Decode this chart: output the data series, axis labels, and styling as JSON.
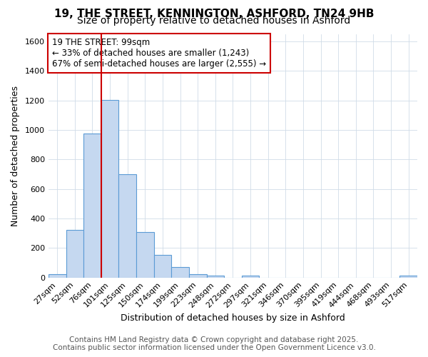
{
  "title": "19, THE STREET, KENNINGTON, ASHFORD, TN24 9HB",
  "subtitle": "Size of property relative to detached houses in Ashford",
  "xlabel": "Distribution of detached houses by size in Ashford",
  "ylabel": "Number of detached properties",
  "bar_labels": [
    "27sqm",
    "52sqm",
    "76sqm",
    "101sqm",
    "125sqm",
    "150sqm",
    "174sqm",
    "199sqm",
    "223sqm",
    "248sqm",
    "272sqm",
    "297sqm",
    "321sqm",
    "346sqm",
    "370sqm",
    "395sqm",
    "419sqm",
    "444sqm",
    "468sqm",
    "493sqm",
    "517sqm"
  ],
  "bar_values": [
    25,
    325,
    975,
    1205,
    700,
    310,
    155,
    70,
    25,
    15,
    0,
    15,
    0,
    0,
    0,
    0,
    0,
    0,
    0,
    0,
    15
  ],
  "bar_color": "#c5d8f0",
  "bar_edge_color": "#5b9bd5",
  "annotation_line1": "19 THE STREET: 99sqm",
  "annotation_line2": "← 33% of detached houses are smaller (1,243)",
  "annotation_line3": "67% of semi-detached houses are larger (2,555) →",
  "vline_color": "#cc0000",
  "ylim": [
    0,
    1650
  ],
  "yticks": [
    0,
    200,
    400,
    600,
    800,
    1000,
    1200,
    1400,
    1600
  ],
  "footer_line1": "Contains HM Land Registry data © Crown copyright and database right 2025.",
  "footer_line2": "Contains public sector information licensed under the Open Government Licence v3.0.",
  "background_color": "#ffffff",
  "plot_bg_color": "#ffffff",
  "grid_color": "#d0dce8",
  "annotation_box_color": "#ffffff",
  "annotation_box_edgecolor": "#cc0000",
  "title_fontsize": 11,
  "subtitle_fontsize": 10,
  "axis_label_fontsize": 9,
  "tick_fontsize": 8,
  "annotation_fontsize": 8.5,
  "footer_fontsize": 7.5
}
